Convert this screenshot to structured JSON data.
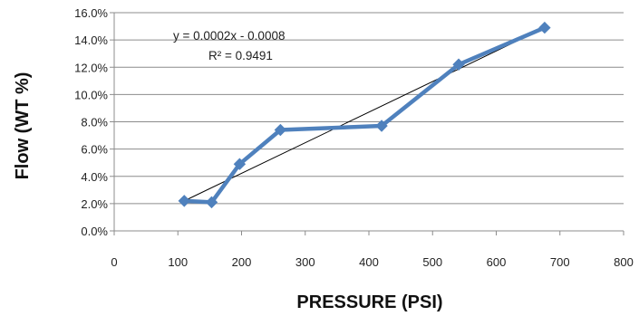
{
  "chart_data": {
    "type": "line",
    "xlabel": "PRESSURE (PSI)",
    "ylabel": "Flow (WT %)",
    "xlim": [
      0,
      800
    ],
    "ylim": [
      0.0,
      16.0
    ],
    "x_ticks": [
      0,
      100,
      200,
      300,
      400,
      500,
      600,
      700,
      800
    ],
    "y_ticks": [
      0.0,
      2.0,
      4.0,
      6.0,
      8.0,
      10.0,
      12.0,
      14.0,
      16.0
    ],
    "y_tick_labels": [
      "0.0%",
      "2.0%",
      "4.0%",
      "6.0%",
      "8.0%",
      "10.0%",
      "12.0%",
      "14.0%",
      "16.0%"
    ],
    "grid": {
      "horizontal": true,
      "vertical": false
    },
    "series": [
      {
        "x": [
          110,
          153,
          197,
          261,
          420,
          541,
          676
        ],
        "y": [
          2.2,
          2.1,
          4.9,
          7.4,
          7.7,
          12.2,
          14.9
        ],
        "color": "#4F81BD",
        "marker": "diamond"
      }
    ],
    "trendline": {
      "type": "linear",
      "x_range": [
        110,
        676
      ],
      "y_range": [
        2.2,
        14.9
      ],
      "color": "#000000",
      "equation": "y = 0.0002x - 0.0008",
      "r_squared_label": "R² = 0.9491"
    }
  }
}
